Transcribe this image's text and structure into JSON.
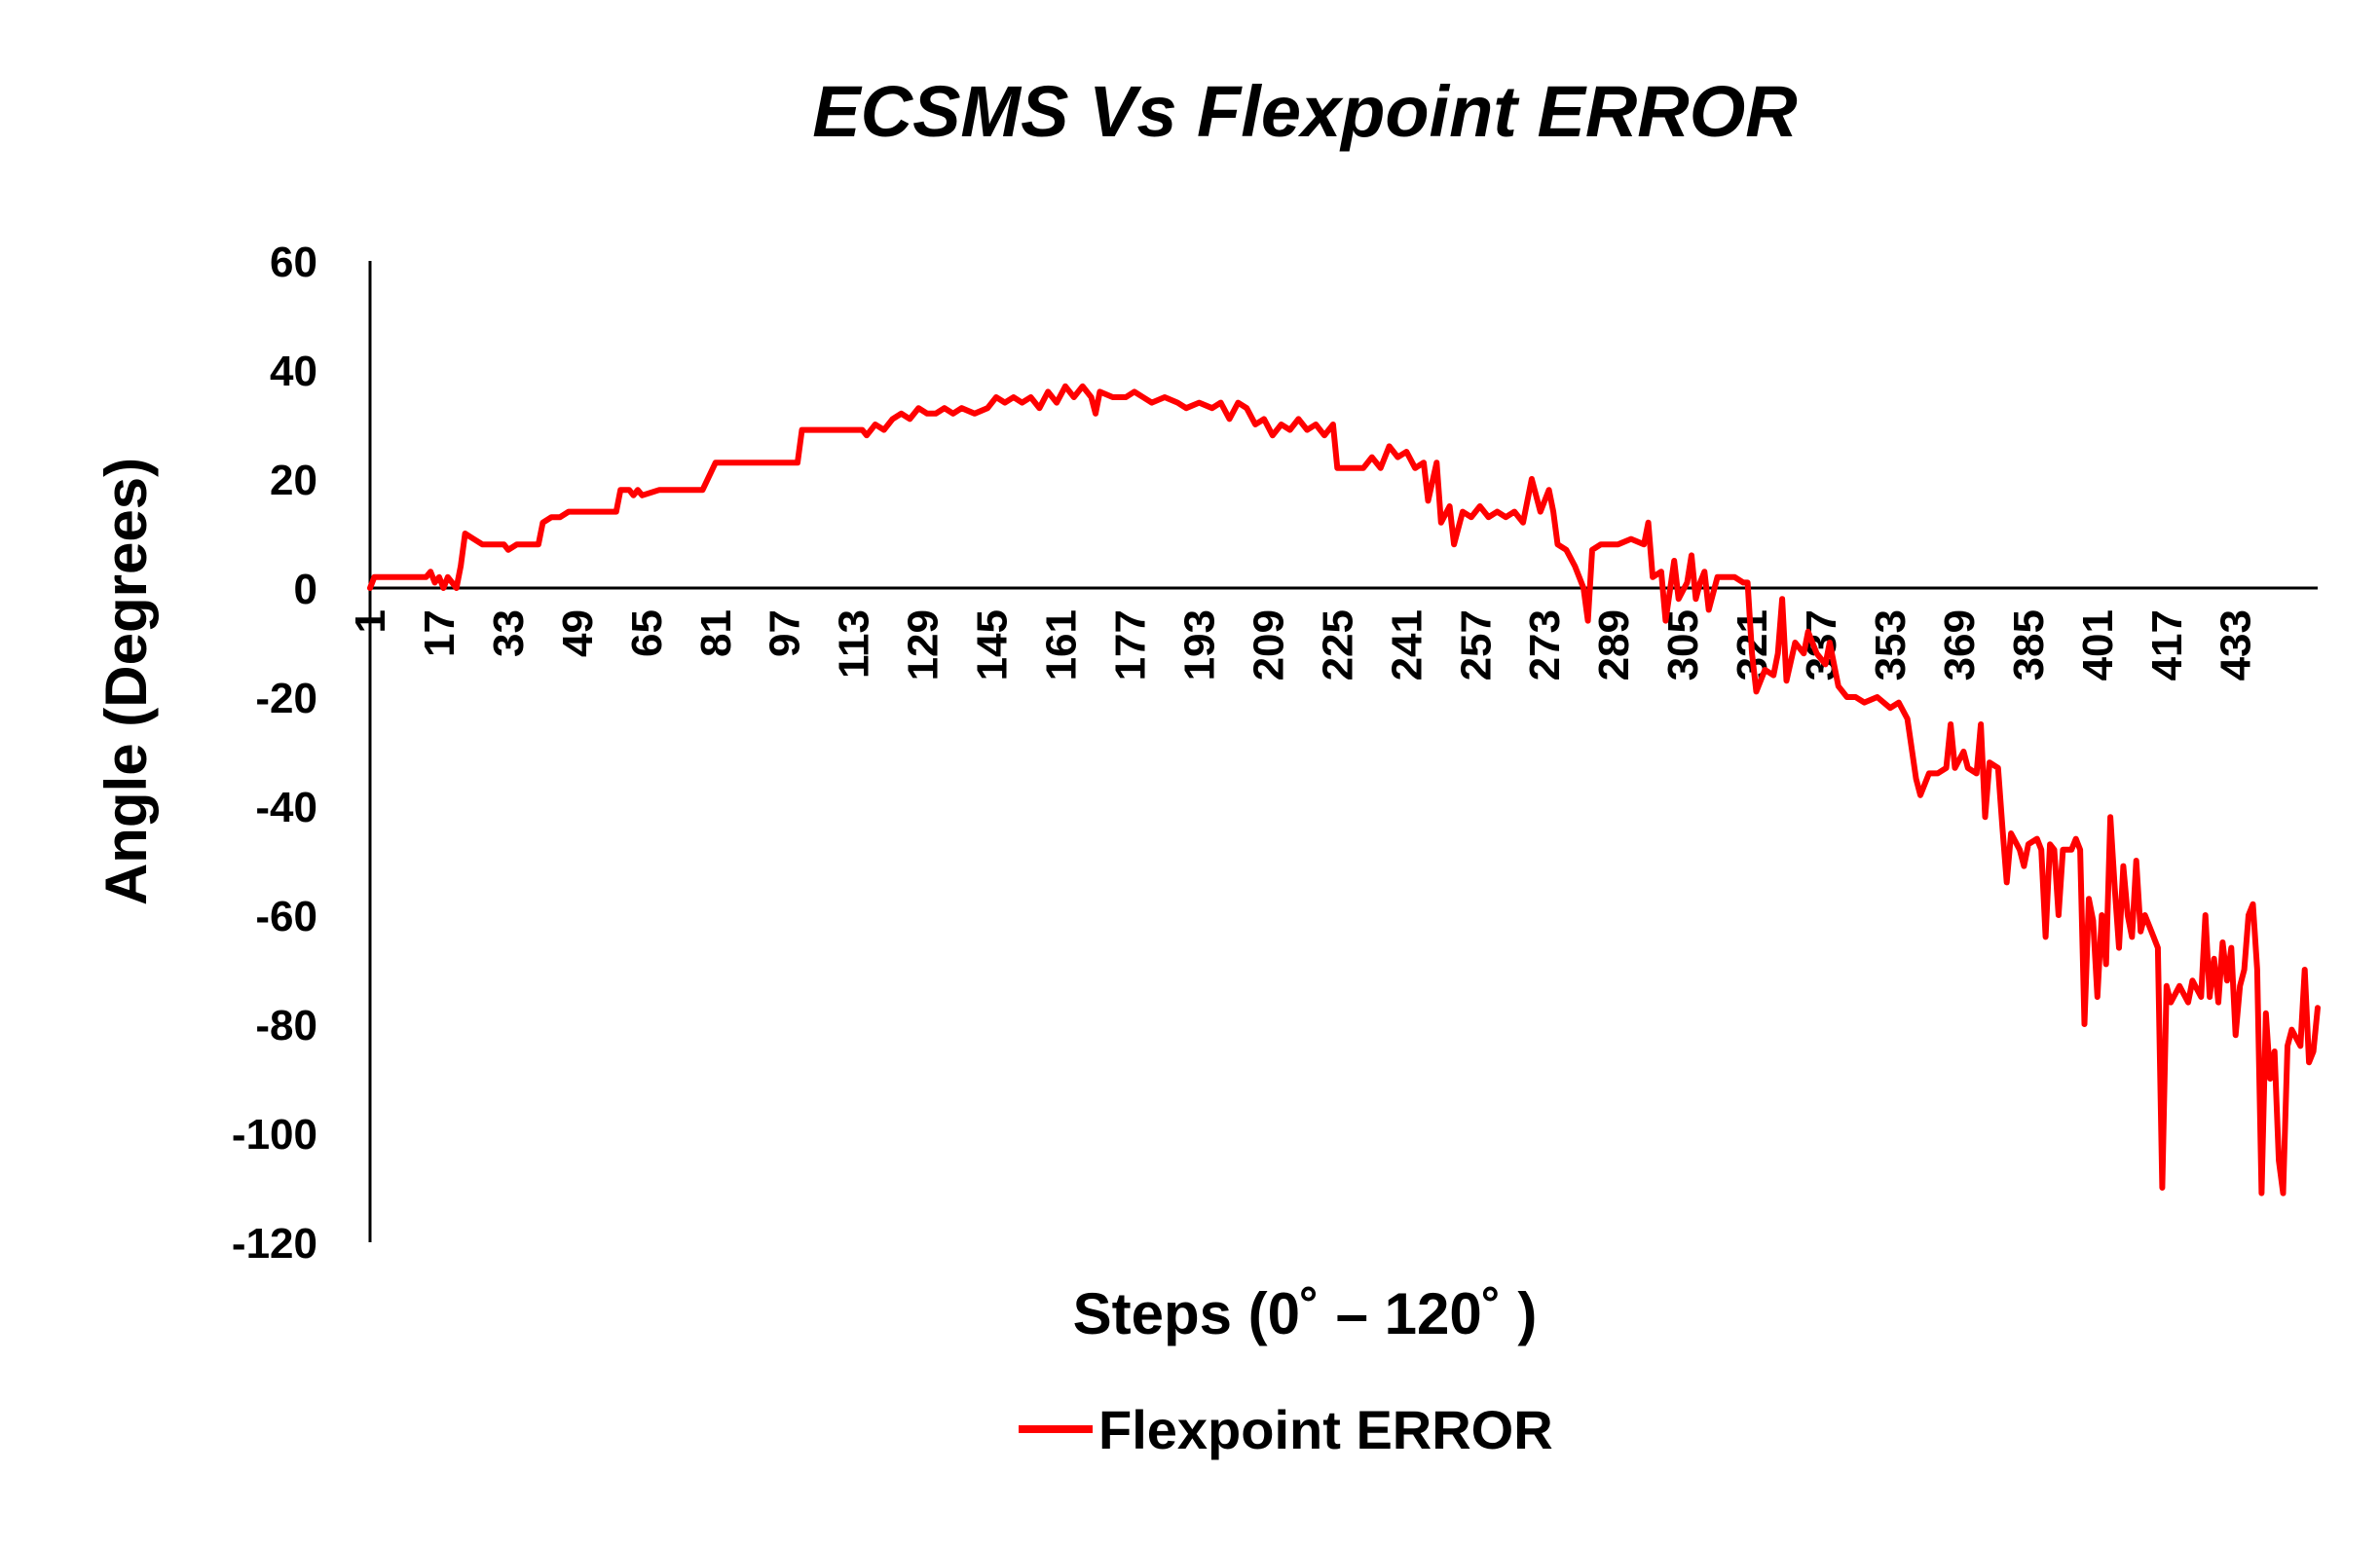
{
  "chart_data": {
    "type": "line",
    "title": "ECSMS Vs Flexpoint ERROR",
    "xlabel": "Steps (0˚ – 120˚ )",
    "ylabel": "Angle (Degrees)",
    "ylim": [
      -120,
      60
    ],
    "xlim": [
      1,
      441
    ],
    "y_ticks": [
      60,
      40,
      20,
      0,
      -20,
      -40,
      -60,
      -80,
      -100,
      -120
    ],
    "x_ticks": [
      1,
      17,
      33,
      49,
      65,
      81,
      97,
      113,
      129,
      145,
      161,
      177,
      193,
      209,
      225,
      241,
      257,
      273,
      289,
      305,
      321,
      337,
      353,
      369,
      385,
      401,
      417,
      433
    ],
    "grid": false,
    "legend_position": "bottom-center",
    "series": [
      {
        "name": "Flexpoint ERROR",
        "color": "#ff0000",
        "points": [
          [
            1,
            0
          ],
          [
            2,
            2
          ],
          [
            5,
            2
          ],
          [
            10,
            2
          ],
          [
            14,
            2
          ],
          [
            15,
            3
          ],
          [
            16,
            1
          ],
          [
            17,
            2
          ],
          [
            18,
            0
          ],
          [
            19,
            2
          ],
          [
            20,
            1
          ],
          [
            21,
            0
          ],
          [
            22,
            4
          ],
          [
            23,
            10
          ],
          [
            25,
            9
          ],
          [
            27,
            8
          ],
          [
            30,
            8
          ],
          [
            32,
            8
          ],
          [
            33,
            7
          ],
          [
            35,
            8
          ],
          [
            37,
            8
          ],
          [
            40,
            8
          ],
          [
            41,
            12
          ],
          [
            43,
            13
          ],
          [
            45,
            13
          ],
          [
            47,
            14
          ],
          [
            50,
            14
          ],
          [
            54,
            14
          ],
          [
            58,
            14
          ],
          [
            59,
            18
          ],
          [
            61,
            18
          ],
          [
            62,
            17
          ],
          [
            63,
            18
          ],
          [
            64,
            17
          ],
          [
            68,
            18
          ],
          [
            70,
            18
          ],
          [
            72,
            18
          ],
          [
            78,
            18
          ],
          [
            81,
            23
          ],
          [
            85,
            23
          ],
          [
            90,
            23
          ],
          [
            95,
            23
          ],
          [
            100,
            23
          ],
          [
            101,
            29
          ],
          [
            105,
            29
          ],
          [
            110,
            29
          ],
          [
            115,
            29
          ],
          [
            116,
            28
          ],
          [
            118,
            30
          ],
          [
            120,
            29
          ],
          [
            122,
            31
          ],
          [
            124,
            32
          ],
          [
            126,
            31
          ],
          [
            128,
            33
          ],
          [
            130,
            32
          ],
          [
            132,
            32
          ],
          [
            134,
            33
          ],
          [
            136,
            32
          ],
          [
            138,
            33
          ],
          [
            141,
            32
          ],
          [
            144,
            33
          ],
          [
            146,
            35
          ],
          [
            148,
            34
          ],
          [
            150,
            35
          ],
          [
            152,
            34
          ],
          [
            154,
            35
          ],
          [
            156,
            33
          ],
          [
            158,
            36
          ],
          [
            160,
            34
          ],
          [
            162,
            37
          ],
          [
            164,
            35
          ],
          [
            166,
            37
          ],
          [
            168,
            35
          ],
          [
            169,
            32
          ],
          [
            170,
            36
          ],
          [
            173,
            35
          ],
          [
            176,
            35
          ],
          [
            178,
            36
          ],
          [
            180,
            35
          ],
          [
            182,
            34
          ],
          [
            185,
            35
          ],
          [
            188,
            34
          ],
          [
            190,
            33
          ],
          [
            193,
            34
          ],
          [
            196,
            33
          ],
          [
            198,
            34
          ],
          [
            200,
            31
          ],
          [
            202,
            34
          ],
          [
            204,
            33
          ],
          [
            206,
            30
          ],
          [
            208,
            31
          ],
          [
            210,
            28
          ],
          [
            212,
            30
          ],
          [
            214,
            29
          ],
          [
            216,
            31
          ],
          [
            218,
            29
          ],
          [
            220,
            30
          ],
          [
            222,
            28
          ],
          [
            224,
            30
          ],
          [
            225,
            22
          ],
          [
            228,
            22
          ],
          [
            231,
            22
          ],
          [
            233,
            24
          ],
          [
            235,
            22
          ],
          [
            237,
            26
          ],
          [
            239,
            24
          ],
          [
            241,
            25
          ],
          [
            243,
            22
          ],
          [
            245,
            23
          ],
          [
            246,
            16
          ],
          [
            248,
            23
          ],
          [
            249,
            12
          ],
          [
            251,
            15
          ],
          [
            252,
            8
          ],
          [
            254,
            14
          ],
          [
            256,
            13
          ],
          [
            258,
            15
          ],
          [
            260,
            13
          ],
          [
            262,
            14
          ],
          [
            264,
            13
          ],
          [
            266,
            14
          ],
          [
            268,
            12
          ],
          [
            270,
            20
          ],
          [
            272,
            14
          ],
          [
            274,
            18
          ],
          [
            275,
            14
          ],
          [
            276,
            8
          ],
          [
            278,
            7
          ],
          [
            280,
            4
          ],
          [
            282,
            0
          ],
          [
            283,
            -6
          ],
          [
            284,
            7
          ],
          [
            286,
            8
          ],
          [
            290,
            8
          ],
          [
            293,
            9
          ],
          [
            296,
            8
          ],
          [
            297,
            12
          ],
          [
            298,
            2
          ],
          [
            300,
            3
          ],
          [
            301,
            -6
          ],
          [
            303,
            5
          ],
          [
            304,
            -2
          ],
          [
            306,
            1
          ],
          [
            307,
            6
          ],
          [
            308,
            -2
          ],
          [
            309,
            1
          ],
          [
            310,
            3
          ],
          [
            311,
            -4
          ],
          [
            313,
            2
          ],
          [
            315,
            2
          ],
          [
            317,
            2
          ],
          [
            319,
            1
          ],
          [
            320,
            1
          ],
          [
            321,
            -12
          ],
          [
            322,
            -19
          ],
          [
            324,
            -15
          ],
          [
            326,
            -16
          ],
          [
            327,
            -12
          ],
          [
            328,
            -2
          ],
          [
            329,
            -17
          ],
          [
            331,
            -10
          ],
          [
            333,
            -12
          ],
          [
            334,
            -8
          ],
          [
            336,
            -12
          ],
          [
            338,
            -14
          ],
          [
            339,
            -10
          ],
          [
            341,
            -18
          ],
          [
            343,
            -20
          ],
          [
            345,
            -20
          ],
          [
            347,
            -21
          ],
          [
            350,
            -20
          ],
          [
            353,
            -22
          ],
          [
            355,
            -21
          ],
          [
            357,
            -24
          ],
          [
            359,
            -35
          ],
          [
            360,
            -38
          ],
          [
            362,
            -34
          ],
          [
            364,
            -34
          ],
          [
            366,
            -33
          ],
          [
            367,
            -25
          ],
          [
            368,
            -33
          ],
          [
            370,
            -30
          ],
          [
            371,
            -33
          ],
          [
            373,
            -34
          ],
          [
            374,
            -25
          ],
          [
            375,
            -42
          ],
          [
            376,
            -32
          ],
          [
            378,
            -33
          ],
          [
            379,
            -44
          ],
          [
            380,
            -54
          ],
          [
            381,
            -45
          ],
          [
            383,
            -48
          ],
          [
            384,
            -51
          ],
          [
            385,
            -47
          ],
          [
            387,
            -46
          ],
          [
            388,
            -48
          ],
          [
            389,
            -64
          ],
          [
            390,
            -47
          ],
          [
            391,
            -48
          ],
          [
            392,
            -60
          ],
          [
            393,
            -48
          ],
          [
            395,
            -48
          ],
          [
            396,
            -46
          ],
          [
            397,
            -48
          ],
          [
            398,
            -80
          ],
          [
            399,
            -57
          ],
          [
            400,
            -61
          ],
          [
            401,
            -75
          ],
          [
            402,
            -60
          ],
          [
            403,
            -69
          ],
          [
            404,
            -42
          ],
          [
            405,
            -55
          ],
          [
            406,
            -66
          ],
          [
            407,
            -51
          ],
          [
            408,
            -60
          ],
          [
            409,
            -64
          ],
          [
            410,
            -50
          ],
          [
            411,
            -63
          ],
          [
            412,
            -60
          ],
          [
            413,
            -62
          ],
          [
            414,
            -64
          ],
          [
            415,
            -66
          ],
          [
            416,
            -110
          ],
          [
            417,
            -73
          ],
          [
            418,
            -76
          ],
          [
            420,
            -73
          ],
          [
            422,
            -76
          ],
          [
            423,
            -72
          ],
          [
            425,
            -75
          ],
          [
            426,
            -60
          ],
          [
            427,
            -75
          ],
          [
            428,
            -68
          ],
          [
            429,
            -76
          ],
          [
            430,
            -65
          ],
          [
            431,
            -72
          ],
          [
            432,
            -66
          ],
          [
            433,
            -82
          ],
          [
            434,
            -73
          ],
          [
            435,
            -70
          ],
          [
            436,
            -60
          ],
          [
            437,
            -58
          ],
          [
            438,
            -70
          ],
          [
            439,
            -111
          ],
          [
            440,
            -78
          ],
          [
            441,
            -90
          ],
          [
            442,
            -85
          ],
          [
            443,
            -105
          ],
          [
            444,
            -111
          ],
          [
            445,
            -84
          ],
          [
            446,
            -81
          ],
          [
            448,
            -84
          ],
          [
            449,
            -70
          ],
          [
            450,
            -87
          ],
          [
            451,
            -85
          ],
          [
            452,
            -77
          ]
        ]
      }
    ]
  }
}
